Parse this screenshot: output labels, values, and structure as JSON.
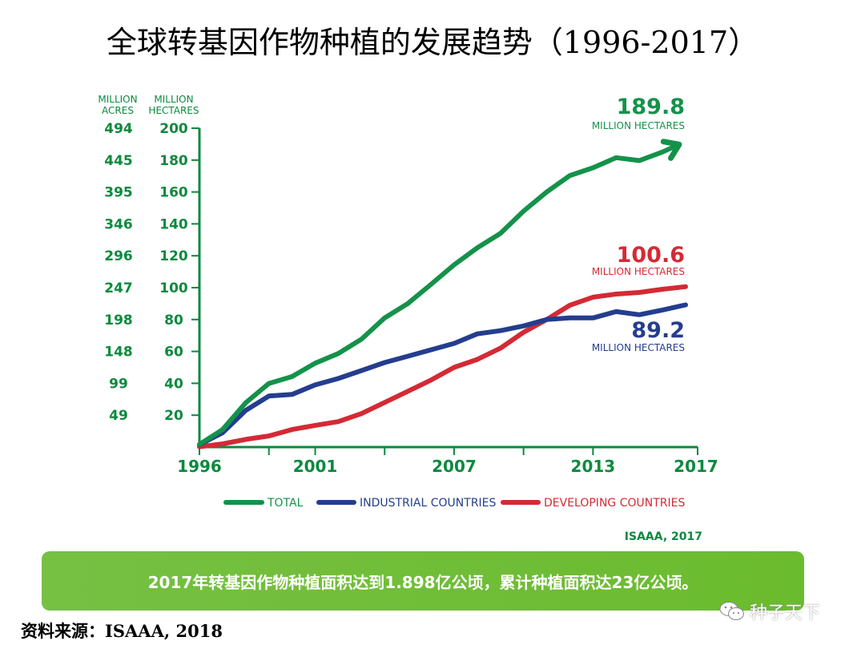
{
  "title": "全球转基因作物种植的发展趋势（1996-2017）",
  "chart_data": {
    "type": "line",
    "x": [
      1996,
      1997,
      1998,
      1999,
      2000,
      2001,
      2002,
      2003,
      2004,
      2005,
      2006,
      2007,
      2008,
      2009,
      2010,
      2011,
      2012,
      2013,
      2014,
      2015,
      2016,
      2017
    ],
    "series": [
      {
        "name": "TOTAL",
        "color": "#14924a",
        "values": [
          1.7,
          11,
          27.8,
          39.9,
          44.2,
          52.6,
          58.7,
          67.7,
          81,
          90,
          102,
          114.3,
          125,
          134,
          148,
          160,
          170.3,
          175.2,
          181.5,
          179.7,
          185.1,
          189.8
        ]
      },
      {
        "name": "INDUSTRIAL COUNTRIES",
        "color": "#243d8f",
        "values": [
          1.5,
          9,
          23,
          32,
          33,
          39,
          43,
          48,
          53,
          57,
          61,
          65,
          71,
          73,
          76,
          80,
          81,
          81,
          85,
          83,
          86,
          89.2
        ]
      },
      {
        "name": "DEVELOPING COUNTRIES",
        "color": "#d42a35",
        "values": [
          0.2,
          2,
          4.8,
          7,
          11,
          13.6,
          16,
          21,
          28,
          35,
          42,
          50,
          55,
          62,
          72,
          80,
          89,
          94,
          96,
          97,
          99,
          100.6
        ]
      }
    ],
    "y_ticks_hectares": [
      20,
      40,
      60,
      80,
      100,
      120,
      140,
      160,
      180,
      200
    ],
    "y_ticks_acres": [
      "49",
      "99",
      "148",
      "198",
      "247",
      "296",
      "346",
      "395",
      "445",
      "494"
    ],
    "x_tick_labels": [
      "1996",
      "2001",
      "2007",
      "2013",
      "2017"
    ],
    "y_axis_heads": {
      "acres": [
        "MILLION",
        "ACRES"
      ],
      "hectares": [
        "MILLION",
        "HECTARES"
      ]
    },
    "ylim": [
      0,
      200
    ],
    "end_labels": [
      {
        "series": "TOTAL",
        "value": "189.8",
        "unit": "MILLION HECTARES"
      },
      {
        "series": "DEVELOPING COUNTRIES",
        "value": "100.6",
        "unit": "MILLION HECTARES"
      },
      {
        "series": "INDUSTRIAL COUNTRIES",
        "value": "89.2",
        "unit": "MILLION HECTARES"
      }
    ],
    "chart_source": "ISAAA, 2017"
  },
  "banner_text": "2017年转基因作物种植面积达到1.898亿公顷，累计种植面积达23亿公顷。",
  "source_note": "资料来源：ISAAA, 2018",
  "watermark": "种子天下",
  "colors": {
    "accent_green": "#0b8a3e",
    "banner_green": "#72be3a"
  }
}
